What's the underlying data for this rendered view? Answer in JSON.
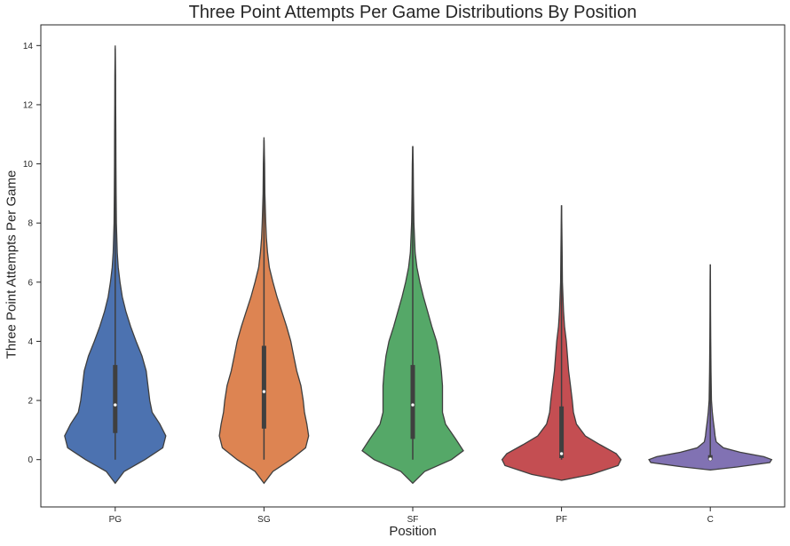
{
  "chart_data": {
    "type": "violin",
    "title": "Three Point Attempts Per Game Distributions By Position",
    "xlabel": "Position",
    "ylabel": "Three Point Attempts Per Game",
    "ylim": [
      -1.6,
      14.7
    ],
    "yticks": [
      0,
      2,
      4,
      6,
      8,
      10,
      12,
      14
    ],
    "grid": false,
    "legend": "none",
    "categories": [
      "PG",
      "SG",
      "SF",
      "PF",
      "C"
    ],
    "series": [
      {
        "category": "PG",
        "color": "#4c72b0",
        "min": 0,
        "max": 13.9,
        "q1": 0.9,
        "median": 1.85,
        "q3": 3.2,
        "cut_low": -0.8,
        "cut_high": 14.0,
        "density": [
          [
            -0.8,
            0
          ],
          [
            -0.4,
            0.15
          ],
          [
            0,
            0.5
          ],
          [
            0.4,
            0.8
          ],
          [
            0.8,
            0.85
          ],
          [
            1.2,
            0.75
          ],
          [
            1.6,
            0.62
          ],
          [
            2,
            0.58
          ],
          [
            2.5,
            0.55
          ],
          [
            3,
            0.52
          ],
          [
            3.5,
            0.45
          ],
          [
            4,
            0.35
          ],
          [
            4.5,
            0.26
          ],
          [
            5,
            0.18
          ],
          [
            5.5,
            0.12
          ],
          [
            6,
            0.08
          ],
          [
            6.5,
            0.05
          ],
          [
            7,
            0.035
          ],
          [
            8,
            0.02
          ],
          [
            9,
            0.015
          ],
          [
            10,
            0.012
          ],
          [
            11,
            0.01
          ],
          [
            12,
            0.008
          ],
          [
            13,
            0.006
          ],
          [
            14,
            0
          ]
        ]
      },
      {
        "category": "SG",
        "color": "#dd8452",
        "min": 0,
        "max": 10.8,
        "q1": 1.05,
        "median": 2.3,
        "q3": 3.85,
        "cut_low": -0.8,
        "cut_high": 10.9,
        "density": [
          [
            -0.8,
            0
          ],
          [
            -0.4,
            0.15
          ],
          [
            0,
            0.45
          ],
          [
            0.4,
            0.7
          ],
          [
            0.8,
            0.75
          ],
          [
            1.2,
            0.72
          ],
          [
            1.6,
            0.68
          ],
          [
            2,
            0.66
          ],
          [
            2.5,
            0.62
          ],
          [
            3,
            0.55
          ],
          [
            3.5,
            0.5
          ],
          [
            4,
            0.45
          ],
          [
            4.5,
            0.38
          ],
          [
            5,
            0.3
          ],
          [
            5.5,
            0.22
          ],
          [
            6,
            0.15
          ],
          [
            6.5,
            0.09
          ],
          [
            7,
            0.06
          ],
          [
            7.5,
            0.04
          ],
          [
            8,
            0.03
          ],
          [
            9,
            0.015
          ],
          [
            10,
            0.01
          ],
          [
            10.9,
            0
          ]
        ]
      },
      {
        "category": "SF",
        "color": "#55a868",
        "min": 0,
        "max": 10.6,
        "q1": 0.7,
        "median": 1.85,
        "q3": 3.2,
        "cut_low": -0.8,
        "cut_high": 10.6,
        "density": [
          [
            -0.8,
            0
          ],
          [
            -0.4,
            0.2
          ],
          [
            0,
            0.65
          ],
          [
            0.3,
            0.85
          ],
          [
            0.7,
            0.72
          ],
          [
            1.2,
            0.55
          ],
          [
            1.6,
            0.5
          ],
          [
            2,
            0.5
          ],
          [
            2.5,
            0.5
          ],
          [
            3,
            0.48
          ],
          [
            3.5,
            0.45
          ],
          [
            4,
            0.4
          ],
          [
            4.5,
            0.32
          ],
          [
            5,
            0.25
          ],
          [
            5.5,
            0.18
          ],
          [
            6,
            0.12
          ],
          [
            6.5,
            0.07
          ],
          [
            7,
            0.04
          ],
          [
            8,
            0.02
          ],
          [
            9,
            0.012
          ],
          [
            10,
            0.008
          ],
          [
            10.6,
            0
          ]
        ]
      },
      {
        "category": "PF",
        "color": "#c44e52",
        "min": 0,
        "max": 8.6,
        "q1": 0.05,
        "median": 0.2,
        "q3": 1.8,
        "cut_low": -0.7,
        "cut_high": 8.6,
        "density": [
          [
            -0.7,
            0
          ],
          [
            -0.5,
            0.5
          ],
          [
            -0.2,
            0.95
          ],
          [
            0,
            1.0
          ],
          [
            0.2,
            0.92
          ],
          [
            0.5,
            0.65
          ],
          [
            0.8,
            0.4
          ],
          [
            1.2,
            0.25
          ],
          [
            1.6,
            0.2
          ],
          [
            2,
            0.18
          ],
          [
            2.5,
            0.15
          ],
          [
            3,
            0.12
          ],
          [
            3.5,
            0.1
          ],
          [
            4,
            0.08
          ],
          [
            4.5,
            0.05
          ],
          [
            5,
            0.035
          ],
          [
            6,
            0.015
          ],
          [
            7,
            0.01
          ],
          [
            8,
            0.005
          ],
          [
            8.6,
            0
          ]
        ]
      },
      {
        "category": "C",
        "color": "#8172b3",
        "min": 0,
        "max": 6.6,
        "q1": 0,
        "median": 0.02,
        "q3": 0.15,
        "cut_low": -0.35,
        "cut_high": 6.6,
        "density": [
          [
            -0.35,
            0
          ],
          [
            -0.25,
            0.45
          ],
          [
            -0.1,
            1.0
          ],
          [
            0,
            1.03
          ],
          [
            0.1,
            0.9
          ],
          [
            0.25,
            0.5
          ],
          [
            0.4,
            0.22
          ],
          [
            0.6,
            0.1
          ],
          [
            0.8,
            0.08
          ],
          [
            1,
            0.07
          ],
          [
            1.3,
            0.05
          ],
          [
            1.6,
            0.035
          ],
          [
            2,
            0.02
          ],
          [
            3,
            0.012
          ],
          [
            4,
            0.008
          ],
          [
            5,
            0.005
          ],
          [
            6,
            0.003
          ],
          [
            6.6,
            0
          ]
        ]
      }
    ]
  }
}
